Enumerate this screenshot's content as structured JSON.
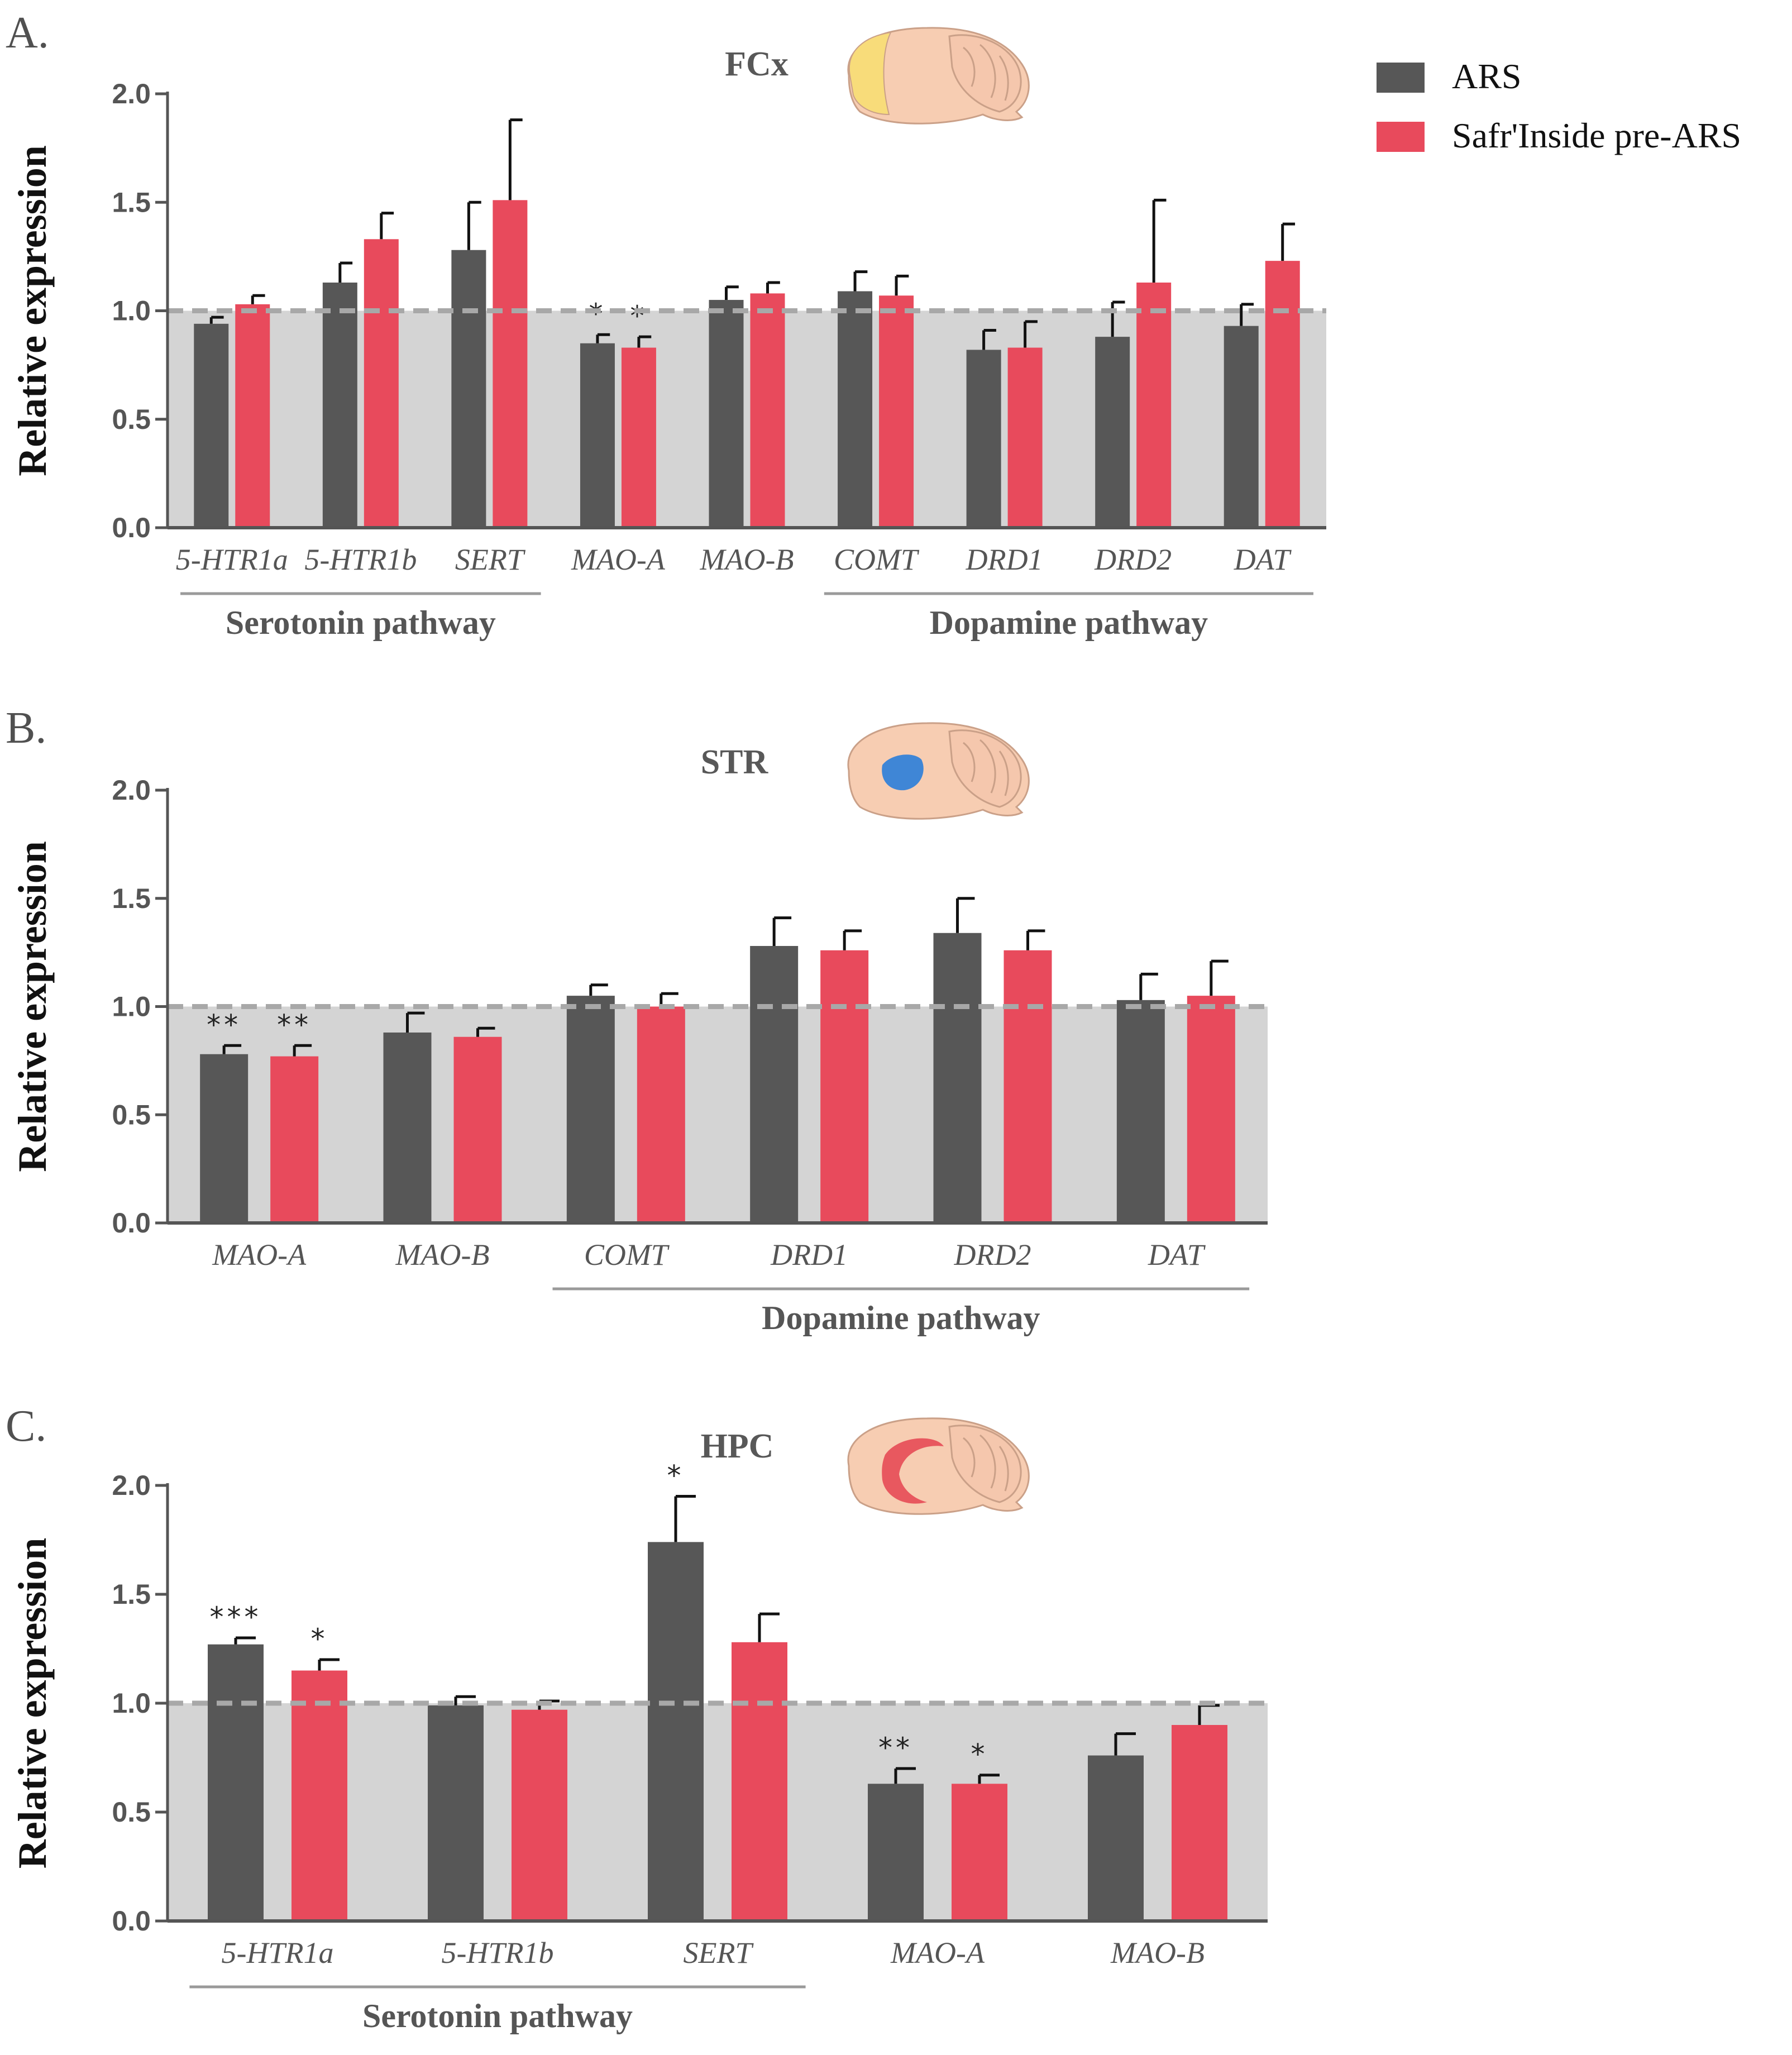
{
  "legend": {
    "items": [
      {
        "label": "ARS",
        "color": "#575757"
      },
      {
        "label": "Safr'Inside pre-ARS",
        "color": "#e84a5c"
      }
    ]
  },
  "colors": {
    "ars": "#575757",
    "safr": "#e84a5c",
    "shade": "#d4d4d4",
    "reference_line": "#a8a8a8",
    "axis": "#555555",
    "brain": "#f7cdb2",
    "brain_outline": "#caa088",
    "fcx_region": "#f8dc7a",
    "str_region": "#3f86d6",
    "hpc_region": "#e8585f"
  },
  "icons": [
    "brain-fcx-icon",
    "brain-str-icon",
    "brain-hpc-icon"
  ],
  "chart_data": [
    {
      "type": "bar",
      "panel_letter": "A.",
      "title": "FCx",
      "xlabel": "",
      "ylabel": "Relative expression",
      "ylim": [
        0,
        2.0
      ],
      "yticks": [
        "0.0",
        "0.5",
        "1.0",
        "1.5",
        "2.0"
      ],
      "reference_value": 1.0,
      "grid": false,
      "legend_position": "top-right",
      "categories": [
        "5-HTR1a",
        "5-HTR1b",
        "SERT",
        "MAO-A",
        "MAO-B",
        "COMT",
        "DRD1",
        "DRD2",
        "DAT"
      ],
      "series": [
        {
          "name": "ARS",
          "values": [
            0.94,
            1.13,
            1.28,
            0.85,
            1.05,
            1.09,
            0.82,
            0.88,
            0.93
          ],
          "errors": [
            0.03,
            0.09,
            0.22,
            0.04,
            0.06,
            0.09,
            0.09,
            0.16,
            0.1
          ],
          "significance": [
            "",
            "",
            "",
            "*",
            "",
            "",
            "",
            "",
            ""
          ]
        },
        {
          "name": "Safr'Inside pre-ARS",
          "values": [
            1.03,
            1.33,
            1.51,
            0.83,
            1.08,
            1.07,
            0.83,
            1.13,
            1.23
          ],
          "errors": [
            0.04,
            0.12,
            0.37,
            0.05,
            0.05,
            0.09,
            0.12,
            0.38,
            0.17
          ],
          "significance": [
            "",
            "",
            "",
            "*",
            "",
            "",
            "",
            "",
            ""
          ]
        }
      ],
      "groups": [
        {
          "label": "Serotonin pathway",
          "from": 0,
          "to": 2
        },
        {
          "label": "Dopamine pathway",
          "from": 5,
          "to": 8
        }
      ]
    },
    {
      "type": "bar",
      "panel_letter": "B.",
      "title": "STR",
      "xlabel": "",
      "ylabel": "Relative expression",
      "ylim": [
        0,
        2.0
      ],
      "yticks": [
        "0.0",
        "0.5",
        "1.0",
        "1.5",
        "2.0"
      ],
      "reference_value": 1.0,
      "grid": false,
      "categories": [
        "MAO-A",
        "MAO-B",
        "COMT",
        "DRD1",
        "DRD2",
        "DAT"
      ],
      "series": [
        {
          "name": "ARS",
          "values": [
            0.78,
            0.88,
            1.05,
            1.28,
            1.34,
            1.03
          ],
          "errors": [
            0.04,
            0.09,
            0.05,
            0.13,
            0.16,
            0.12
          ],
          "significance": [
            "**",
            "",
            "",
            "",
            "",
            ""
          ]
        },
        {
          "name": "Safr'Inside pre-ARS",
          "values": [
            0.77,
            0.86,
            1.0,
            1.26,
            1.26,
            1.05
          ],
          "errors": [
            0.05,
            0.04,
            0.06,
            0.09,
            0.09,
            0.16
          ],
          "significance": [
            "**",
            "",
            "",
            "",
            "",
            ""
          ]
        }
      ],
      "groups": [
        {
          "label": "Dopamine pathway",
          "from": 2,
          "to": 5
        }
      ]
    },
    {
      "type": "bar",
      "panel_letter": "C.",
      "title": "HPC",
      "xlabel": "",
      "ylabel": "Relative expression",
      "ylim": [
        0,
        2.0
      ],
      "yticks": [
        "0.0",
        "0.5",
        "1.0",
        "1.5",
        "2.0"
      ],
      "reference_value": 1.0,
      "grid": false,
      "categories": [
        "5-HTR1a",
        "5-HTR1b",
        "SERT",
        "MAO-A",
        "MAO-B"
      ],
      "series": [
        {
          "name": "ARS",
          "values": [
            1.27,
            0.99,
            1.74,
            0.63,
            0.76
          ],
          "errors": [
            0.03,
            0.04,
            0.21,
            0.07,
            0.1
          ],
          "significance": [
            "***",
            "",
            "*",
            "**",
            ""
          ]
        },
        {
          "name": "Safr'Inside pre-ARS",
          "values": [
            1.15,
            0.97,
            1.28,
            0.63,
            0.9
          ],
          "errors": [
            0.05,
            0.04,
            0.13,
            0.04,
            0.09
          ],
          "significance": [
            "*",
            "",
            "",
            "*",
            ""
          ]
        }
      ],
      "groups": [
        {
          "label": "Serotonin pathway",
          "from": 0,
          "to": 2
        }
      ]
    }
  ]
}
